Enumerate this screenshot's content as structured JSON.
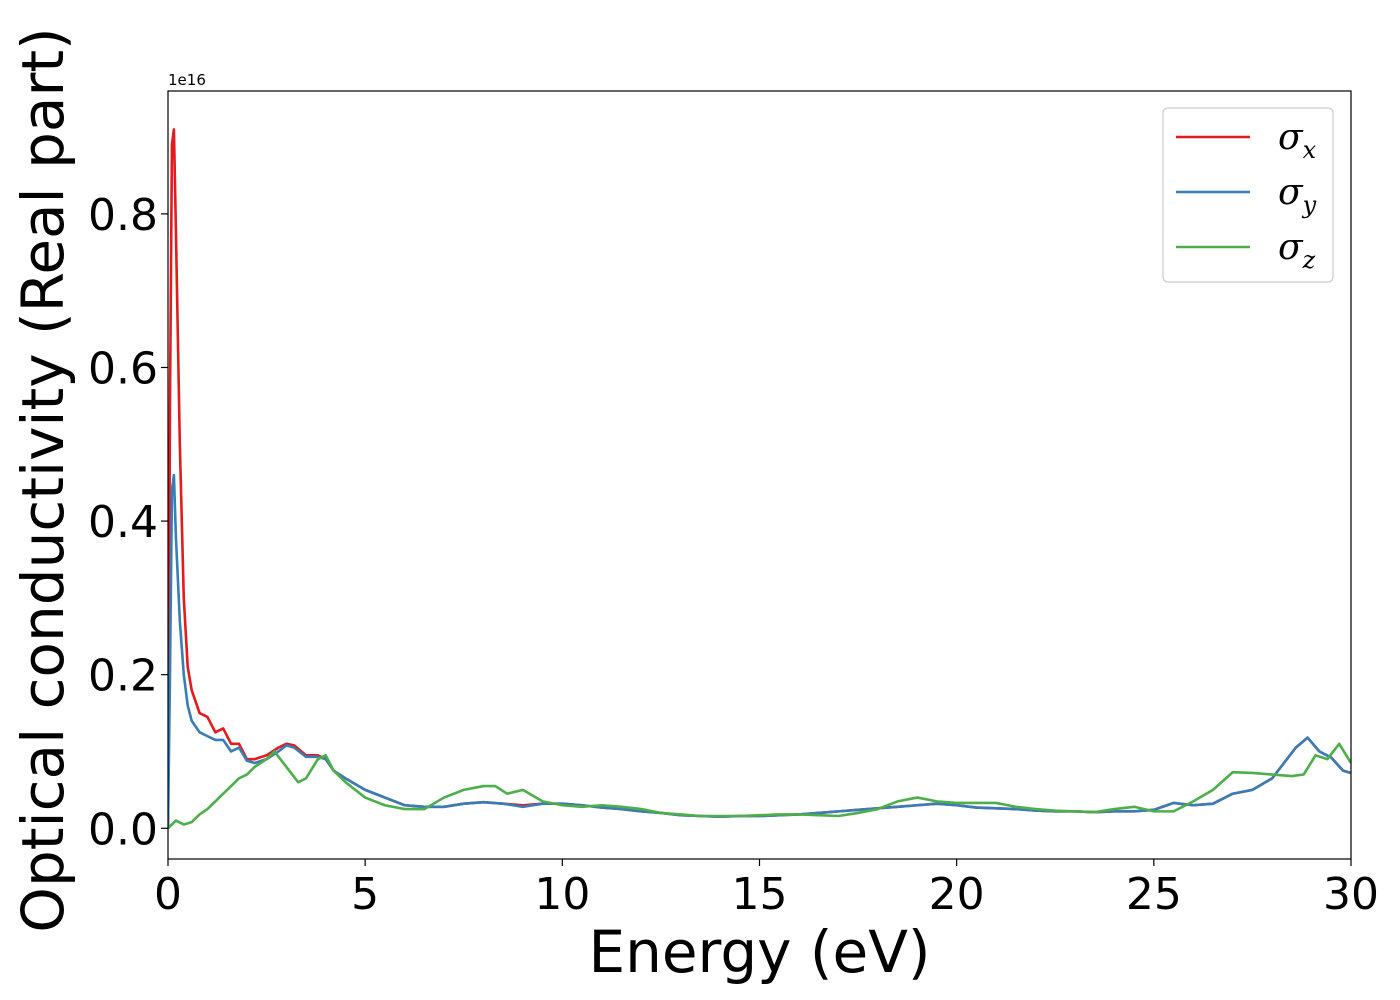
{
  "chart_data": {
    "type": "line",
    "xlabel": "Energy (eV)",
    "ylabel": "Optical conductivity (Real part)",
    "y_offset_text": "1e16",
    "xlim": [
      0,
      30
    ],
    "ylim": [
      -0.04,
      0.96
    ],
    "xticks": [
      0,
      5,
      10,
      15,
      20,
      25,
      30
    ],
    "xtick_labels": [
      "0",
      "5",
      "10",
      "15",
      "20",
      "25",
      "30"
    ],
    "yticks": [
      0.0,
      0.2,
      0.4,
      0.6,
      0.8
    ],
    "ytick_labels": [
      "0.0",
      "0.2",
      "0.4",
      "0.6",
      "0.8"
    ],
    "grid": false,
    "legend_position": "top-right",
    "series": [
      {
        "name": "σ",
        "subscript": "x",
        "color": "#e41a1c",
        "x": [
          0,
          0.05,
          0.1,
          0.15,
          0.2,
          0.3,
          0.4,
          0.5,
          0.6,
          0.8,
          1.0,
          1.2,
          1.4,
          1.6,
          1.8,
          2.0,
          2.2,
          2.5,
          2.8,
          3.0,
          3.2,
          3.5,
          3.8,
          4.0,
          4.2,
          4.5,
          5.0,
          5.5,
          6.0,
          6.5,
          7.0,
          7.5,
          8.0,
          8.5,
          9.0,
          9.5,
          10.0,
          10.5,
          11.0,
          11.5,
          12.0,
          12.5,
          13.0,
          13.5,
          14.0,
          14.5,
          15.0,
          15.5,
          16.0,
          16.5,
          17.0,
          17.5,
          18.0,
          18.5,
          19.0,
          19.5,
          20.0,
          20.5,
          21.0,
          21.5,
          22.0,
          22.5,
          23.0,
          23.5,
          24.0,
          24.5,
          25.0,
          25.5,
          26.0,
          26.5,
          27.0,
          27.5,
          28.0,
          28.3,
          28.6,
          28.9,
          29.2,
          29.5,
          29.8,
          30.0
        ],
        "y": [
          0.0,
          0.55,
          0.89,
          0.91,
          0.78,
          0.5,
          0.3,
          0.21,
          0.18,
          0.15,
          0.145,
          0.125,
          0.13,
          0.11,
          0.11,
          0.09,
          0.09,
          0.095,
          0.105,
          0.11,
          0.108,
          0.095,
          0.095,
          0.09,
          0.075,
          0.065,
          0.05,
          0.04,
          0.03,
          0.028,
          0.028,
          0.032,
          0.034,
          0.032,
          0.03,
          0.032,
          0.032,
          0.03,
          0.027,
          0.025,
          0.022,
          0.02,
          0.017,
          0.016,
          0.015,
          0.016,
          0.016,
          0.017,
          0.018,
          0.02,
          0.022,
          0.024,
          0.026,
          0.028,
          0.03,
          0.032,
          0.03,
          0.027,
          0.026,
          0.025,
          0.023,
          0.022,
          0.022,
          0.021,
          0.022,
          0.022,
          0.024,
          0.033,
          0.03,
          0.032,
          0.045,
          0.05,
          0.065,
          0.085,
          0.105,
          0.118,
          0.1,
          0.092,
          0.075,
          0.072
        ]
      },
      {
        "name": "σ",
        "subscript": "y",
        "color": "#377eb8",
        "x": [
          0,
          0.05,
          0.1,
          0.15,
          0.2,
          0.3,
          0.4,
          0.5,
          0.6,
          0.8,
          1.0,
          1.2,
          1.4,
          1.6,
          1.8,
          2.0,
          2.2,
          2.5,
          2.8,
          3.0,
          3.2,
          3.5,
          3.8,
          4.0,
          4.2,
          4.5,
          5.0,
          5.5,
          6.0,
          6.5,
          7.0,
          7.5,
          8.0,
          8.5,
          9.0,
          9.5,
          10.0,
          10.5,
          11.0,
          11.5,
          12.0,
          12.5,
          13.0,
          13.5,
          14.0,
          14.5,
          15.0,
          15.5,
          16.0,
          16.5,
          17.0,
          17.5,
          18.0,
          18.5,
          19.0,
          19.5,
          20.0,
          20.5,
          21.0,
          21.5,
          22.0,
          22.5,
          23.0,
          23.5,
          24.0,
          24.5,
          25.0,
          25.5,
          26.0,
          26.5,
          27.0,
          27.5,
          28.0,
          28.3,
          28.6,
          28.9,
          29.2,
          29.5,
          29.8,
          30.0
        ],
        "y": [
          0.0,
          0.2,
          0.44,
          0.46,
          0.38,
          0.27,
          0.2,
          0.16,
          0.14,
          0.125,
          0.12,
          0.115,
          0.115,
          0.1,
          0.105,
          0.088,
          0.085,
          0.09,
          0.1,
          0.108,
          0.105,
          0.093,
          0.093,
          0.09,
          0.075,
          0.065,
          0.05,
          0.04,
          0.03,
          0.028,
          0.028,
          0.032,
          0.034,
          0.032,
          0.028,
          0.032,
          0.032,
          0.03,
          0.027,
          0.025,
          0.022,
          0.02,
          0.017,
          0.016,
          0.015,
          0.016,
          0.016,
          0.017,
          0.018,
          0.02,
          0.022,
          0.024,
          0.026,
          0.028,
          0.03,
          0.032,
          0.03,
          0.027,
          0.026,
          0.025,
          0.023,
          0.022,
          0.022,
          0.021,
          0.022,
          0.022,
          0.024,
          0.033,
          0.03,
          0.032,
          0.045,
          0.05,
          0.065,
          0.085,
          0.105,
          0.118,
          0.1,
          0.092,
          0.075,
          0.072
        ]
      },
      {
        "name": "σ",
        "subscript": "z",
        "color": "#4daf4a",
        "x": [
          0,
          0.2,
          0.4,
          0.6,
          0.8,
          1.0,
          1.2,
          1.4,
          1.6,
          1.8,
          2.0,
          2.2,
          2.5,
          2.7,
          3.0,
          3.3,
          3.5,
          3.8,
          4.0,
          4.2,
          4.5,
          5.0,
          5.5,
          6.0,
          6.5,
          7.0,
          7.5,
          8.0,
          8.3,
          8.6,
          9.0,
          9.5,
          10.0,
          10.5,
          11.0,
          11.5,
          12.0,
          12.5,
          13.0,
          13.5,
          14.0,
          14.5,
          15.0,
          15.5,
          16.0,
          16.5,
          17.0,
          17.5,
          18.0,
          18.5,
          19.0,
          19.5,
          20.0,
          20.5,
          21.0,
          21.5,
          22.0,
          22.5,
          23.0,
          23.5,
          24.0,
          24.5,
          25.0,
          25.5,
          26.0,
          26.5,
          27.0,
          27.5,
          28.0,
          28.5,
          28.8,
          29.1,
          29.4,
          29.7,
          30.0
        ],
        "y": [
          0.0,
          0.01,
          0.005,
          0.008,
          0.018,
          0.025,
          0.035,
          0.045,
          0.055,
          0.065,
          0.07,
          0.08,
          0.09,
          0.1,
          0.08,
          0.06,
          0.065,
          0.09,
          0.095,
          0.075,
          0.06,
          0.04,
          0.03,
          0.025,
          0.025,
          0.04,
          0.05,
          0.055,
          0.055,
          0.045,
          0.05,
          0.035,
          0.03,
          0.028,
          0.03,
          0.028,
          0.025,
          0.02,
          0.018,
          0.016,
          0.016,
          0.016,
          0.017,
          0.018,
          0.018,
          0.017,
          0.016,
          0.02,
          0.025,
          0.035,
          0.04,
          0.035,
          0.033,
          0.033,
          0.033,
          0.028,
          0.025,
          0.023,
          0.022,
          0.021,
          0.025,
          0.028,
          0.022,
          0.022,
          0.035,
          0.05,
          0.073,
          0.072,
          0.07,
          0.068,
          0.07,
          0.095,
          0.09,
          0.11,
          0.085
        ]
      }
    ]
  }
}
